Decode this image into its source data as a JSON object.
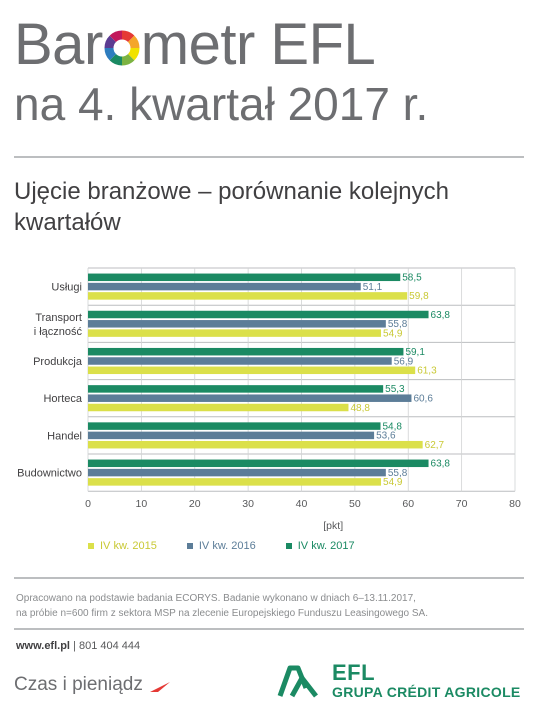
{
  "header": {
    "title_part1": "Bar",
    "title_part2": "metr EFL",
    "title_line2": "na 4. kwartał 2017 r.",
    "logo_o_colors": [
      "#e53935",
      "#f4a62a",
      "#f1e200",
      "#7cb342",
      "#1b8a63",
      "#2e7dbf",
      "#5c3c92",
      "#c2185b"
    ]
  },
  "subtitle": "Ujęcie branżowe – porównanie kolejnych kwartałów",
  "chart_data": {
    "type": "bar",
    "orientation": "horizontal",
    "categories": [
      "Usługi",
      "Transport i łączność",
      "Produkcja",
      "Horteca",
      "Handel",
      "Budownictwo"
    ],
    "category_lines": [
      [
        "Usługi"
      ],
      [
        "Transport",
        "i łączność"
      ],
      [
        "Produkcja"
      ],
      [
        "Horteca"
      ],
      [
        "Handel"
      ],
      [
        "Budownictwo"
      ]
    ],
    "series": [
      {
        "name": "IV kw. 2017",
        "color": "#1b8a63",
        "values": [
          58.5,
          63.8,
          59.1,
          55.3,
          54.8,
          63.8
        ],
        "labels": [
          "58,5",
          "63,8",
          "59,1",
          "55,3",
          "54,8",
          "63,8"
        ]
      },
      {
        "name": "IV kw. 2016",
        "color": "#5c7d98",
        "values": [
          51.1,
          55.8,
          56.9,
          60.6,
          53.6,
          55.8
        ],
        "labels": [
          "51,1",
          "55,8",
          "56,9",
          "60,6",
          "53,6",
          "55,8"
        ]
      },
      {
        "name": "IV kw. 2015",
        "color": "#dbe04a",
        "values": [
          59.8,
          54.9,
          61.3,
          48.8,
          62.7,
          54.9
        ],
        "labels": [
          "59,8",
          "54,9",
          "61,3",
          "48,8",
          "62,7",
          "54,9"
        ]
      }
    ],
    "xlim": [
      0,
      80
    ],
    "xticks": [
      0,
      10,
      20,
      30,
      40,
      50,
      60,
      70,
      80
    ],
    "xlabel": "[pkt]",
    "grid": true,
    "legend": [
      "IV kw. 2015",
      "IV kw. 2016",
      "IV kw. 2017"
    ],
    "legend_colors": [
      "#dbe04a",
      "#5c7d98",
      "#1b8a63"
    ],
    "legend_position": "bottom"
  },
  "footnote": {
    "line1": "Opracowano na podstawie badania ECORYS. Badanie wykonano w dniach 6–13.11.2017,",
    "line2": "na próbie n=600 firm z sektora MSP na zlecenie Europejskiego Funduszu Leasingowego SA."
  },
  "contact": {
    "url": "www.efl.pl",
    "separator": " | ",
    "phone": "801 404 444"
  },
  "tagline": "Czas i pieniądz",
  "brand": {
    "name": "EFL",
    "group": "GRUPA CRÉDIT AGRICOLE"
  }
}
